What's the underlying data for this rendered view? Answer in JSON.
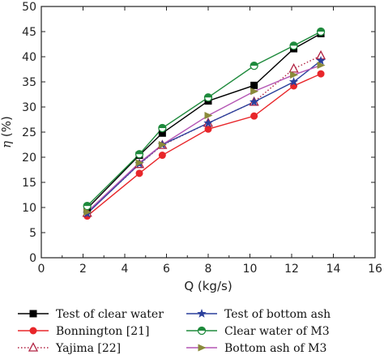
{
  "chart_data": {
    "type": "line",
    "xlabel": "Q (kg/s)",
    "ylabel_symbol": "η",
    "ylabel_unit": "(%)",
    "xlim": [
      0,
      16
    ],
    "ylim": [
      0,
      50
    ],
    "xticks": [
      0,
      2,
      4,
      6,
      8,
      10,
      12,
      14,
      16
    ],
    "yticks": [
      0,
      5,
      10,
      15,
      20,
      25,
      30,
      35,
      40,
      45,
      50
    ],
    "grid": false,
    "legend": "below",
    "series": [
      {
        "name": "Test of clear water",
        "color": "#000000",
        "marker": "square",
        "dash": "solid",
        "x": [
          2.2,
          4.7,
          5.8,
          8.0,
          10.2,
          12.1,
          13.4
        ],
        "y": [
          9.8,
          20.4,
          24.8,
          31.2,
          34.3,
          41.6,
          44.6
        ]
      },
      {
        "name": "Bonnington [21]",
        "color": "#e8262a",
        "marker": "circle",
        "dash": "solid",
        "x": [
          2.2,
          4.7,
          5.8,
          8.0,
          10.2,
          12.1,
          13.4
        ],
        "y": [
          8.3,
          16.8,
          20.4,
          25.6,
          28.2,
          34.2,
          36.6
        ]
      },
      {
        "name": "Yajima [22]",
        "color": "#b02040",
        "marker": "triangle-open",
        "dash": "dotted",
        "x": [
          2.2,
          4.7,
          5.8,
          8.0,
          10.2,
          12.1,
          13.4
        ],
        "y": [
          8.9,
          18.6,
          22.4,
          26.8,
          31.0,
          37.6,
          40.2
        ]
      },
      {
        "name": "Test of bottom ash",
        "color": "#2a3f9c",
        "marker": "star",
        "dash": "solid",
        "x": [
          2.2,
          4.7,
          5.8,
          8.0,
          10.2,
          12.1,
          13.4
        ],
        "y": [
          8.8,
          18.7,
          22.5,
          26.8,
          31.0,
          35.0,
          39.2
        ]
      },
      {
        "name": "Clear water of M3",
        "color": "#1e8a3c",
        "marker": "circle-half",
        "dash": "solid",
        "x": [
          2.2,
          4.7,
          5.8,
          8.0,
          10.2,
          12.1,
          13.4
        ],
        "y": [
          10.3,
          20.6,
          25.8,
          31.9,
          38.2,
          42.2,
          45.0
        ]
      },
      {
        "name": "Bottom ash of M3",
        "color": "#b455b4",
        "marker": "triangle-right",
        "dash": "solid",
        "marker_color": "#8a8a3a",
        "x": [
          2.2,
          4.7,
          5.8,
          8.0,
          10.2,
          12.1,
          13.4
        ],
        "y": [
          9.1,
          18.9,
          22.5,
          28.3,
          33.1,
          36.4,
          38.3
        ]
      }
    ]
  }
}
